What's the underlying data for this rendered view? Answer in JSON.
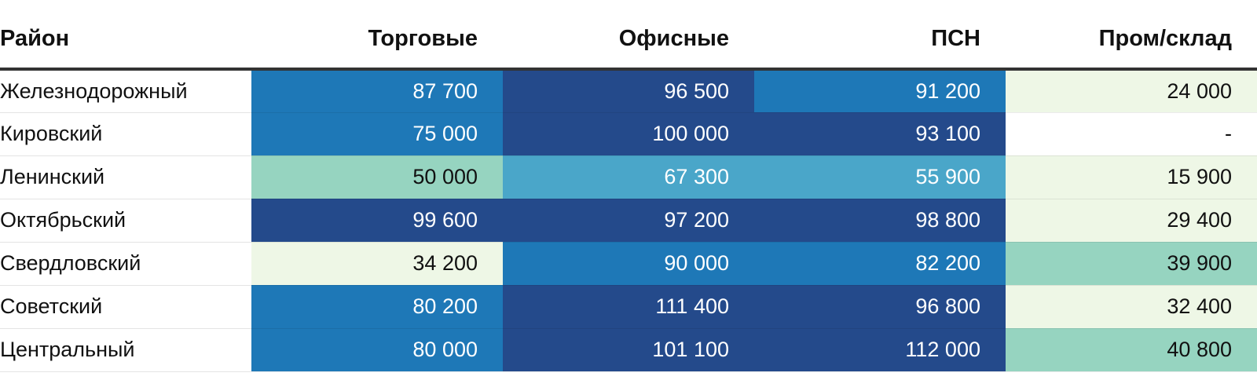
{
  "chart_data": {
    "type": "table",
    "columns": [
      "Район",
      "Торговые",
      "Офисные",
      "ПСН",
      "Пром/склад"
    ],
    "rows": [
      {
        "district": "Железнодорожный",
        "cells": [
          "87 700",
          "96 500",
          "91 200",
          "24 000"
        ],
        "values": [
          87700,
          96500,
          91200,
          24000
        ]
      },
      {
        "district": "Кировский",
        "cells": [
          "75 000",
          "100 000",
          "93 100",
          "-"
        ],
        "values": [
          75000,
          100000,
          93100,
          null
        ]
      },
      {
        "district": "Ленинский",
        "cells": [
          "50 000",
          "67 300",
          "55 900",
          "15 900"
        ],
        "values": [
          50000,
          67300,
          55900,
          15900
        ]
      },
      {
        "district": "Октябрьский",
        "cells": [
          "99 600",
          "97 200",
          "98 800",
          "29 400"
        ],
        "values": [
          99600,
          97200,
          98800,
          29400
        ]
      },
      {
        "district": "Свердловский",
        "cells": [
          "34 200",
          "90 000",
          "82 200",
          "39 900"
        ],
        "values": [
          34200,
          90000,
          82200,
          39900
        ]
      },
      {
        "district": "Советский",
        "cells": [
          "80 200",
          "111 400",
          "96 800",
          "32 400"
        ],
        "values": [
          80200,
          111400,
          96800,
          32400
        ]
      },
      {
        "district": "Центральный",
        "cells": [
          "80 000",
          "101 100",
          "112 000",
          "40 800"
        ],
        "values": [
          80000,
          101100,
          112000,
          40800
        ]
      }
    ],
    "color_scale": {
      "steps": [
        {
          "min": 0,
          "color": "#eef7e6",
          "text": "#111111"
        },
        {
          "min": 39500,
          "color": "#96d4c0",
          "text": "#111111"
        },
        {
          "min": 52000,
          "color": "#4aa6c9",
          "text": "#ffffff"
        },
        {
          "min": 70000,
          "color": "#1e78b7",
          "text": "#ffffff"
        },
        {
          "min": 93000,
          "color": "#244a8b",
          "text": "#ffffff"
        }
      ],
      "empty_color": "#ffffff"
    }
  }
}
